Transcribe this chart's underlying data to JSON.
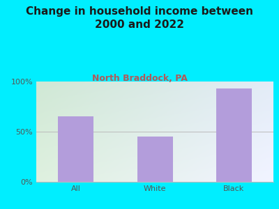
{
  "title": "Change in household income between\n2000 and 2022",
  "subtitle": "North Braddock, PA",
  "categories": [
    "All",
    "White",
    "Black"
  ],
  "values": [
    65,
    45,
    93
  ],
  "bar_color": "#b39ddb",
  "title_fontsize": 11,
  "subtitle_fontsize": 9,
  "subtitle_color": "#b05a5a",
  "title_color": "#1a1a1a",
  "background_color": "#00eeff",
  "plot_bg_color_topleft": "#c8e6c9",
  "plot_bg_color_white": "#ffffff",
  "plot_bg_color_bottomright": "#b2ebf2",
  "yticks": [
    0,
    50,
    100
  ],
  "ytick_labels": [
    "0%",
    "50%",
    "100%"
  ],
  "ylim": [
    0,
    100
  ],
  "tick_label_color": "#555555",
  "grid_color": "#bbbbbb"
}
